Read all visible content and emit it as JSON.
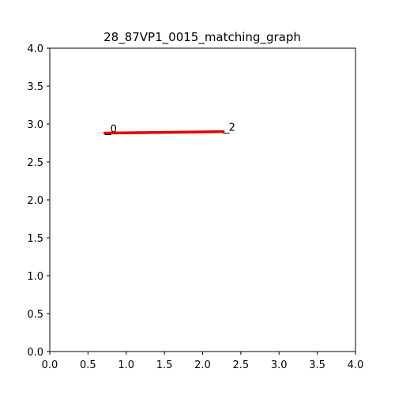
{
  "chart_data": {
    "type": "line",
    "title": "28_87VP1_0015_matching_graph",
    "xlabel": "",
    "ylabel": "",
    "xlim": [
      0.0,
      4.0
    ],
    "ylim": [
      0.0,
      4.0
    ],
    "x_ticks": [
      "0.0",
      "0.5",
      "1.0",
      "1.5",
      "2.0",
      "2.5",
      "3.0",
      "3.5",
      "4.0"
    ],
    "y_ticks": [
      "0.0",
      "0.5",
      "1.0",
      "1.5",
      "2.0",
      "2.5",
      "3.0",
      "3.5",
      "4.0"
    ],
    "grid": false,
    "nodes": [
      {
        "label": "0",
        "x": 0.72,
        "y": 2.88
      },
      {
        "label": "2",
        "x": 2.27,
        "y": 2.9
      }
    ],
    "edges": [
      {
        "from": "0",
        "to": "2",
        "color": "#e50000"
      }
    ],
    "node_marker_color": "#000000"
  }
}
